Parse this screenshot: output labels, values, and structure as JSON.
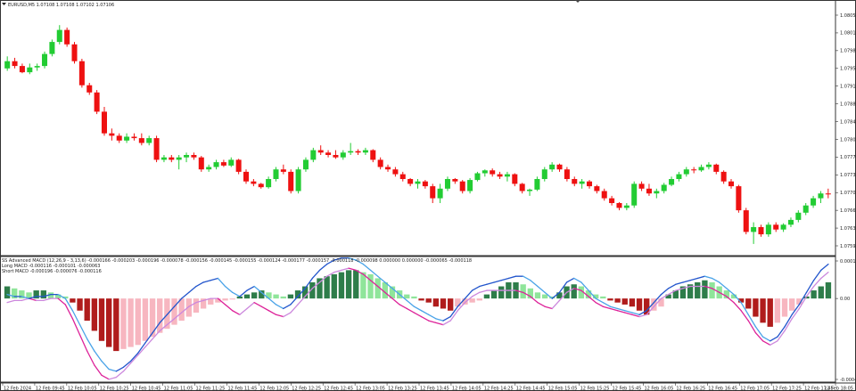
{
  "main": {
    "header": "EURUSD,M5  1.07108 1.07108 1.07102 1.07106",
    "price_labels": [
      "1.08050",
      "1.08015",
      "1.07985",
      "1.07950",
      "1.07915",
      "1.07880",
      "1.07845",
      "1.07805",
      "1.07770",
      "1.07735",
      "1.07700",
      "1.07665",
      "1.07630",
      "1.07595"
    ]
  },
  "sub": {
    "header": "SS Advanced MACD (12,26,9 - 3,13,6) -0.000166 -0.000203 -0.000196 -0.000078 -0.000156 -0.000145 -0.000155 -0.000124 -0.000177 -0.000157 -0.000118 -0.000098 0.000000 0.000000 -0.000065 -0.000118",
    "long_macd": "Long MACD -0.000116 -0.000101 -0.000063",
    "short_macd": "Short MACD -0.000196 -0.000076 -0.000116",
    "scale_labels": [
      "0.000199",
      "0.00",
      "-0.000405"
    ]
  },
  "time_labels": [
    "12 Feb 2024",
    "12 Feb 09:45",
    "12 Feb 10:05",
    "12 Feb 10:25",
    "12 Feb 10:45",
    "12 Feb 11:05",
    "12 Feb 11:25",
    "12 Feb 11:45",
    "12 Feb 12:05",
    "12 Feb 12:25",
    "12 Feb 12:45",
    "12 Feb 13:05",
    "12 Feb 13:25",
    "12 Feb 13:45",
    "12 Feb 14:05",
    "12 Feb 14:25",
    "12 Feb 14:45",
    "12 Feb 15:05",
    "12 Feb 15:25",
    "12 Feb 15:45",
    "12 Feb 16:05",
    "12 Feb 16:25",
    "12 Feb 16:45",
    "12 Feb 17:05",
    "12 Feb 17:25",
    "12 Feb 17:45",
    "12 Feb 18:05"
  ],
  "colors": {
    "bull": "#22cc33",
    "bear": "#ee1111",
    "hist_dark_green": "#2e7d4a",
    "hist_light_green": "#8fe59a",
    "hist_dark_red": "#b01c1c",
    "hist_pink": "#f7b6c0",
    "long_line": "#2255cc",
    "long_line_light": "#4aa3e8",
    "short_line": "#dd2299",
    "short_line_light": "#cc88dd"
  },
  "chart_data": [
    {
      "type": "candlestick",
      "title": "EURUSD,M5",
      "ylim": [
        1.0757,
        1.0807
      ],
      "candles": [
        [
          1.0795,
          1.07975,
          1.07945,
          1.07965
        ],
        [
          1.07965,
          1.07972,
          1.0795,
          1.07955
        ],
        [
          1.07955,
          1.0796,
          1.0794,
          1.07942
        ],
        [
          1.07942,
          1.0796,
          1.07938,
          1.07952
        ],
        [
          1.07952,
          1.0796,
          1.07945,
          1.07955
        ],
        [
          1.07955,
          1.07985,
          1.0795,
          1.0798
        ],
        [
          1.0798,
          1.0801,
          1.07975,
          1.08005
        ],
        [
          1.08005,
          1.0804,
          1.08,
          1.0803
        ],
        [
          1.0803,
          1.08035,
          1.07995,
          1.08
        ],
        [
          1.08,
          1.08005,
          1.0796,
          1.07965
        ],
        [
          1.07965,
          1.0797,
          1.0791,
          1.07915
        ],
        [
          1.07915,
          1.0792,
          1.07895,
          1.079
        ],
        [
          1.079,
          1.07905,
          1.07855,
          1.0786
        ],
        [
          1.0786,
          1.0787,
          1.0781,
          1.07815
        ],
        [
          1.07815,
          1.07825,
          1.078,
          1.0781
        ],
        [
          1.0781,
          1.07815,
          1.07795,
          1.078
        ],
        [
          1.078,
          1.07815,
          1.07795,
          1.07808
        ],
        [
          1.07808,
          1.07815,
          1.078,
          1.07805
        ],
        [
          1.07805,
          1.07815,
          1.0779,
          1.07795
        ],
        [
          1.07795,
          1.0781,
          1.0779,
          1.07805
        ],
        [
          1.07805,
          1.0781,
          1.07755,
          1.0776
        ],
        [
          1.0776,
          1.0777,
          1.07755,
          1.07765
        ],
        [
          1.07765,
          1.0777,
          1.07755,
          1.0776
        ],
        [
          1.0776,
          1.0777,
          1.0774,
          1.07765
        ],
        [
          1.07765,
          1.07775,
          1.07755,
          1.0777
        ],
        [
          1.0777,
          1.07775,
          1.0776,
          1.07765
        ],
        [
          1.07765,
          1.07768,
          1.07735,
          1.0774
        ],
        [
          1.0774,
          1.0775,
          1.07735,
          1.07745
        ],
        [
          1.07745,
          1.0776,
          1.0774,
          1.07755
        ],
        [
          1.07755,
          1.0776,
          1.07745,
          1.07748
        ],
        [
          1.07748,
          1.07765,
          1.07745,
          1.0776
        ],
        [
          1.0776,
          1.07762,
          1.0773,
          1.07735
        ],
        [
          1.07735,
          1.0774,
          1.0771,
          1.07715
        ],
        [
          1.07715,
          1.0772,
          1.07705,
          1.0771
        ],
        [
          1.0771,
          1.07712,
          1.077,
          1.07703
        ],
        [
          1.07703,
          1.07725,
          1.077,
          1.0772
        ],
        [
          1.0772,
          1.07745,
          1.07715,
          1.0774
        ],
        [
          1.0774,
          1.0775,
          1.0773,
          1.07735
        ],
        [
          1.07735,
          1.0774,
          1.0769,
          1.07695
        ],
        [
          1.07695,
          1.07745,
          1.0769,
          1.0774
        ],
        [
          1.0774,
          1.07765,
          1.07735,
          1.0776
        ],
        [
          1.0776,
          1.07785,
          1.07755,
          1.0778
        ],
        [
          1.0778,
          1.0779,
          1.0777,
          1.07775
        ],
        [
          1.07775,
          1.0778,
          1.07765,
          1.0777
        ],
        [
          1.0777,
          1.0778,
          1.07762,
          1.07765
        ],
        [
          1.07765,
          1.0778,
          1.0776,
          1.07775
        ],
        [
          1.07775,
          1.07795,
          1.0777,
          1.07778
        ],
        [
          1.07778,
          1.07782,
          1.0777,
          1.07775
        ],
        [
          1.07775,
          1.07785,
          1.0777,
          1.0778
        ],
        [
          1.0778,
          1.07782,
          1.07755,
          1.0776
        ],
        [
          1.0776,
          1.07765,
          1.0774,
          1.07745
        ],
        [
          1.07745,
          1.0775,
          1.07735,
          1.0774
        ],
        [
          1.0774,
          1.07745,
          1.07725,
          1.0773
        ],
        [
          1.0773,
          1.07735,
          1.07715,
          1.0772
        ],
        [
          1.0772,
          1.07722,
          1.07705,
          1.0771
        ],
        [
          1.0771,
          1.0772,
          1.077,
          1.07715
        ],
        [
          1.07715,
          1.07718,
          1.077,
          1.07705
        ],
        [
          1.07705,
          1.0771,
          1.0767,
          1.0768
        ],
        [
          1.0768,
          1.0771,
          1.0767,
          1.077
        ],
        [
          1.077,
          1.07725,
          1.07695,
          1.0772
        ],
        [
          1.0772,
          1.07722,
          1.0771,
          1.07715
        ],
        [
          1.07715,
          1.07718,
          1.0769,
          1.07695
        ],
        [
          1.07695,
          1.07722,
          1.0769,
          1.07718
        ],
        [
          1.07718,
          1.07735,
          1.07715,
          1.07732
        ],
        [
          1.07732,
          1.0774,
          1.07725,
          1.07738
        ],
        [
          1.07738,
          1.07742,
          1.07725,
          1.0773
        ],
        [
          1.0773,
          1.07735,
          1.0772,
          1.07725
        ],
        [
          1.07725,
          1.07735,
          1.07715,
          1.0773
        ],
        [
          1.0773,
          1.07732,
          1.07705,
          1.0771
        ],
        [
          1.0771,
          1.07712,
          1.0769,
          1.07695
        ],
        [
          1.07695,
          1.077,
          1.07685,
          1.07698
        ],
        [
          1.07698,
          1.07725,
          1.07695,
          1.0772
        ],
        [
          1.0772,
          1.07745,
          1.07715,
          1.0774
        ],
        [
          1.0774,
          1.07755,
          1.07735,
          1.0775
        ],
        [
          1.0775,
          1.07752,
          1.07735,
          1.0774
        ],
        [
          1.0774,
          1.07745,
          1.07715,
          1.0772
        ],
        [
          1.0772,
          1.07725,
          1.07705,
          1.0771
        ],
        [
          1.0771,
          1.0772,
          1.077,
          1.07715
        ],
        [
          1.07715,
          1.07718,
          1.077,
          1.07705
        ],
        [
          1.07705,
          1.07708,
          1.0769,
          1.07695
        ],
        [
          1.07695,
          1.077,
          1.07675,
          1.0768
        ],
        [
          1.0768,
          1.07685,
          1.07665,
          1.0767
        ],
        [
          1.0767,
          1.07672,
          1.07655,
          1.0766
        ],
        [
          1.0766,
          1.0767,
          1.07655,
          1.07665
        ],
        [
          1.07665,
          1.07715,
          1.0766,
          1.0771
        ],
        [
          1.0771,
          1.07715,
          1.07695,
          1.077
        ],
        [
          1.077,
          1.0771,
          1.07685,
          1.0769
        ],
        [
          1.0769,
          1.077,
          1.0768,
          1.07695
        ],
        [
          1.07695,
          1.07712,
          1.0769,
          1.07708
        ],
        [
          1.07708,
          1.07725,
          1.07705,
          1.0772
        ],
        [
          1.0772,
          1.07735,
          1.07715,
          1.0773
        ],
        [
          1.0773,
          1.07745,
          1.07725,
          1.0774
        ],
        [
          1.0774,
          1.07745,
          1.07732,
          1.07738
        ],
        [
          1.07738,
          1.0775,
          1.07735,
          1.07745
        ],
        [
          1.07745,
          1.07755,
          1.0774,
          1.0775
        ],
        [
          1.0775,
          1.07752,
          1.0773,
          1.07735
        ],
        [
          1.07735,
          1.07738,
          1.0771,
          1.07715
        ],
        [
          1.07715,
          1.0772,
          1.077,
          1.07705
        ],
        [
          1.07705,
          1.07708,
          1.0765,
          1.07655
        ],
        [
          1.07655,
          1.0766,
          1.07605,
          1.0761
        ],
        [
          1.0761,
          1.0763,
          1.07585,
          1.0762
        ],
        [
          1.0762,
          1.07625,
          1.076,
          1.07605
        ],
        [
          1.07605,
          1.0763,
          1.076,
          1.07625
        ],
        [
          1.07625,
          1.0763,
          1.0761,
          1.07615
        ],
        [
          1.07615,
          1.07628,
          1.0761,
          1.07625
        ],
        [
          1.07625,
          1.0764,
          1.0762,
          1.07635
        ],
        [
          1.07635,
          1.07655,
          1.0763,
          1.0765
        ],
        [
          1.0765,
          1.0767,
          1.07645,
          1.07665
        ],
        [
          1.07665,
          1.07685,
          1.0766,
          1.0768
        ],
        [
          1.0768,
          1.07695,
          1.0767,
          1.0769
        ],
        [
          1.0769,
          1.077,
          1.0768,
          1.07688
        ]
      ]
    },
    {
      "type": "bar",
      "title": "SS Advanced MACD (12,26,9 - 3,13,6)",
      "ylim": [
        -0.000405,
        0.000199
      ],
      "histogram": [
        6e-05,
        5e-05,
        4e-05,
        3e-05,
        4e-05,
        4e-05,
        3e-05,
        2e-05,
        1e-05,
        -2e-05,
        -6e-05,
        -0.00011,
        -0.00016,
        -0.00021,
        -0.00024,
        -0.00026,
        -0.00025,
        -0.00024,
        -0.00023,
        -0.00021,
        -0.00019,
        -0.00017,
        -0.00015,
        -0.00013,
        -0.00011,
        -9e-05,
        -7e-05,
        -5e-05,
        -3e-05,
        -2e-05,
        -1e-05,
        -5e-06,
        1e-05,
        2e-05,
        3e-05,
        4e-05,
        3e-05,
        2e-05,
        1e-05,
        2e-05,
        4e-05,
        6e-05,
        8e-05,
        0.0001,
        0.00011,
        0.00012,
        0.00013,
        0.00014,
        0.00014,
        0.00013,
        0.00012,
        0.0001,
        8e-05,
        6e-05,
        4e-05,
        2e-05,
        1e-05,
        -1e-05,
        -2e-05,
        -4e-05,
        -5e-05,
        -6e-05,
        -4e-05,
        -3e-05,
        -2e-05,
        -1e-05,
        2e-05,
        4e-05,
        6e-05,
        8e-05,
        8e-05,
        7e-05,
        5e-05,
        3e-05,
        2e-05,
        1e-05,
        3e-05,
        6e-05,
        7e-05,
        6e-05,
        4e-05,
        2e-05,
        1e-05,
        -1e-05,
        -2e-05,
        -3e-05,
        -4e-05,
        -6e-05,
        -8e-05,
        -6e-05,
        -4e-05,
        2e-05,
        4e-05,
        6e-05,
        7e-05,
        8e-05,
        9e-05,
        8e-05,
        6e-05,
        4e-05,
        2e-05,
        -2e-05,
        -5e-05,
        -9e-05,
        -0.00012,
        -0.00014,
        -0.00012,
        -9e-05,
        -6e-05,
        -3e-05,
        1e-05,
        4e-05,
        6e-05,
        8e-05
      ],
      "long_macd": [
        2e-05,
        1e-05,
        1e-05,
        0.0,
        1e-05,
        1e-05,
        2e-05,
        2e-05,
        0.0,
        -6e-05,
        -0.00013,
        -0.0002,
        -0.00026,
        -0.00031,
        -0.00035,
        -0.00036,
        -0.00034,
        -0.00031,
        -0.00027,
        -0.00022,
        -0.00017,
        -0.00012,
        -8e-05,
        -4e-05,
        0.0,
        3e-05,
        6e-05,
        8e-05,
        9e-05,
        0.0001,
        6e-05,
        3e-05,
        1e-05,
        4e-05,
        6e-05,
        3e-05,
        0.0,
        -3e-05,
        -5e-05,
        -3e-05,
        1e-05,
        5e-05,
        0.0001,
        0.00014,
        0.00017,
        0.00019,
        0.0002,
        0.0002,
        0.00019,
        0.00017,
        0.00014,
        0.00011,
        8e-05,
        5e-05,
        2e-05,
        -1e-05,
        -4e-05,
        -6e-05,
        -8e-05,
        -0.0001,
        -0.00011,
        -9e-05,
        -4e-05,
        0.0,
        4e-05,
        6e-05,
        7e-05,
        8e-05,
        9e-05,
        0.0001,
        0.00011,
        0.00011,
        9e-05,
        6e-05,
        3e-05,
        0.0,
        3e-05,
        8e-05,
        0.0001,
        8e-05,
        4e-05,
        0.0,
        -2e-05,
        -4e-05,
        -5e-05,
        -6e-05,
        -7e-05,
        -8e-05,
        -6e-05,
        -2e-05,
        2e-05,
        5e-05,
        7e-05,
        8e-05,
        9e-05,
        0.0001,
        0.00011,
        0.0001,
        8e-05,
        5e-05,
        2e-05,
        -2e-05,
        -8e-05,
        -0.00014,
        -0.00019,
        -0.00021,
        -0.00019,
        -0.00014,
        -8e-05,
        -3e-05,
        3e-05,
        9e-05,
        0.00014,
        0.00017
      ],
      "short_macd": [
        -2e-05,
        -1e-05,
        -1e-05,
        0.0,
        -1e-05,
        -1e-05,
        0.0,
        0.0,
        -3e-05,
        -0.0001,
        -0.00018,
        -0.00026,
        -0.00033,
        -0.00038,
        -0.0004,
        -0.00039,
        -0.00036,
        -0.00032,
        -0.00028,
        -0.00024,
        -0.0002,
        -0.00016,
        -0.00013,
        -0.0001,
        -7e-05,
        -4e-05,
        -2e-05,
        -1e-05,
        0.0,
        0.0,
        -3e-05,
        -6e-05,
        -8e-05,
        -5e-05,
        -2e-05,
        -4e-05,
        -6e-05,
        -8e-05,
        -9e-05,
        -7e-05,
        -3e-05,
        1e-05,
        5e-05,
        8e-05,
        0.00011,
        0.00013,
        0.00014,
        0.00015,
        0.00014,
        0.00012,
        9e-05,
        6e-05,
        3e-05,
        0.0,
        -3e-05,
        -5e-05,
        -7e-05,
        -9e-05,
        -0.00011,
        -0.00012,
        -0.00013,
        -0.00011,
        -6e-05,
        -2e-05,
        1e-05,
        3e-05,
        4e-05,
        4e-05,
        4e-05,
        4e-05,
        4e-05,
        3e-05,
        1e-05,
        -2e-05,
        -4e-05,
        -5e-05,
        -1e-05,
        3e-05,
        5e-05,
        4e-05,
        1e-05,
        -2e-05,
        -4e-05,
        -5e-05,
        -6e-05,
        -7e-05,
        -8e-05,
        -9e-05,
        -8e-05,
        -4e-05,
        0.0,
        2e-05,
        4e-05,
        5e-05,
        6e-05,
        6e-05,
        6e-05,
        5e-05,
        3e-05,
        1e-05,
        -2e-05,
        -6e-05,
        -0.00011,
        -0.00017,
        -0.00021,
        -0.00023,
        -0.00021,
        -0.00016,
        -0.0001,
        -5e-05,
        1e-05,
        6e-05,
        0.0001,
        0.00013
      ]
    }
  ]
}
